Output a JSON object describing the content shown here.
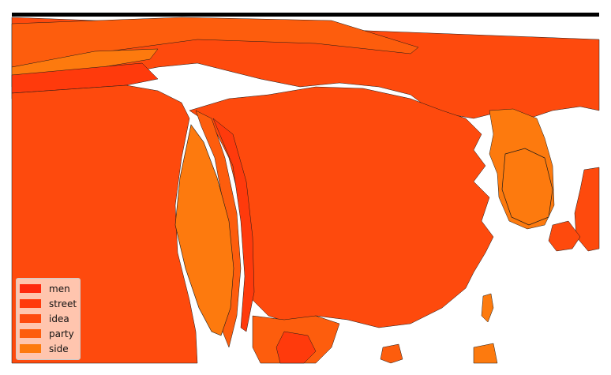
{
  "map": {
    "colors": {
      "men": "#ff2a0e",
      "street": "#ff3a0c",
      "idea": "#fe4a0d",
      "party": "#fd5d0d",
      "side": "#fd7a0e",
      "ocean": "#ffffff",
      "border": "#1a1a1a"
    }
  },
  "legend": {
    "items": [
      {
        "label": "men",
        "color": "#ff2a0e"
      },
      {
        "label": "street",
        "color": "#ff3a0c"
      },
      {
        "label": "idea",
        "color": "#fe4a0d"
      },
      {
        "label": "party",
        "color": "#fd5d0d"
      },
      {
        "label": "side",
        "color": "#fd7a0e"
      }
    ]
  }
}
